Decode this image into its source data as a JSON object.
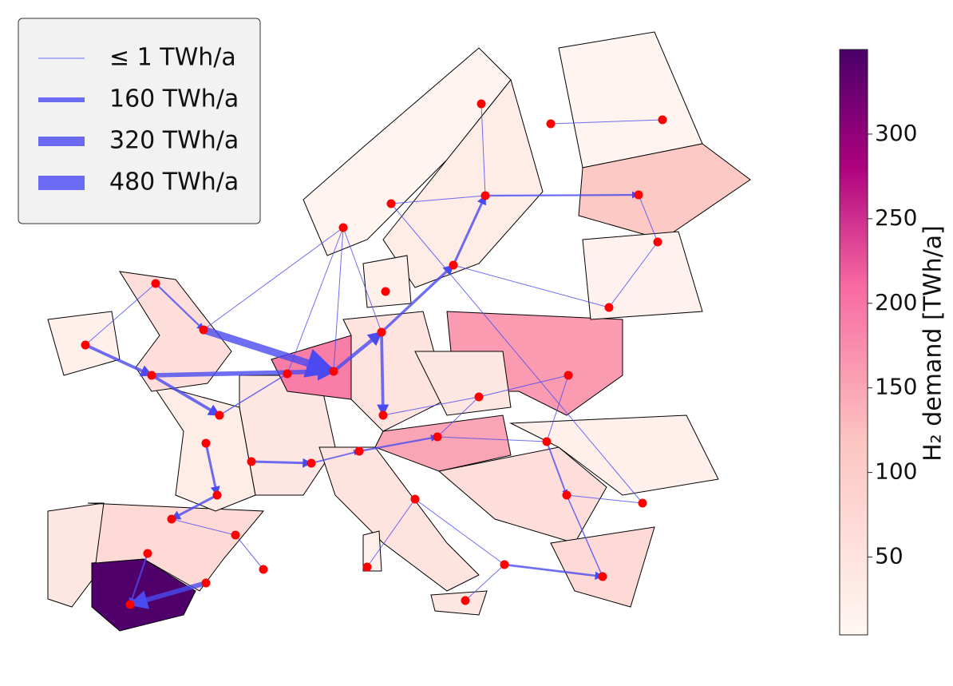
{
  "legend": [
    {
      "value": 1,
      "label": "≤ 1 TWh/a"
    },
    {
      "value": 160,
      "label": "160 TWh/a"
    },
    {
      "value": 320,
      "label": "320 TWh/a"
    },
    {
      "value": 480,
      "label": "480 TWh/a"
    }
  ],
  "colorbar": {
    "label": "H₂ demand [TWh/a]",
    "lim": [
      4,
      350
    ],
    "ticks": [
      50,
      100,
      150,
      200,
      250,
      300
    ]
  },
  "regions": {
    "demand": [
      40,
      345,
      70,
      30,
      40,
      60,
      20,
      190,
      50,
      160,
      150,
      50,
      60,
      20,
      70,
      10,
      30,
      10,
      110,
      15,
      40,
      20,
      40,
      20
    ]
  },
  "flows": {
    "values": [
      160,
      60,
      80,
      80,
      100,
      100,
      250,
      150,
      60,
      120,
      90,
      80,
      60,
      100,
      80,
      50,
      60,
      70,
      50,
      40,
      40,
      1,
      1,
      1,
      1,
      1,
      1,
      1,
      1,
      1,
      1,
      1,
      1,
      1,
      1,
      1,
      1,
      1,
      1,
      1,
      1,
      1,
      1,
      1
    ]
  }
}
